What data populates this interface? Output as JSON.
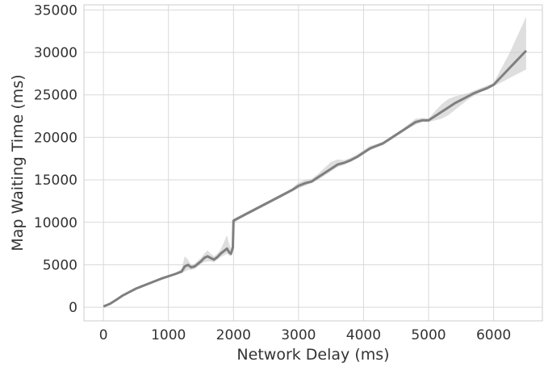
{
  "chart_data": {
    "type": "line",
    "title": "",
    "xlabel": "Network Delay (ms)",
    "ylabel": "Map Waiting Time (ms)",
    "xlim": [
      -300,
      6750
    ],
    "ylim": [
      -1600,
      35600
    ],
    "xticks": [
      0,
      1000,
      2000,
      3000,
      4000,
      5000,
      6000
    ],
    "yticks": [
      0,
      5000,
      10000,
      15000,
      20000,
      25000,
      30000,
      35000
    ],
    "xtick_labels": [
      "0",
      "1000",
      "2000",
      "3000",
      "4000",
      "5000",
      "6000"
    ],
    "ytick_labels": [
      "0",
      "5000",
      "10000",
      "15000",
      "20000",
      "25000",
      "30000",
      "35000"
    ],
    "grid": true,
    "legend": "none",
    "colors": {
      "line": "#7f7f7f",
      "band": "#c8c8c8",
      "grid": "#d9d9d9"
    },
    "series": [
      {
        "x": [
          0,
          100,
          200,
          300,
          400,
          500,
          600,
          700,
          800,
          900,
          1000,
          1100,
          1200,
          1250,
          1300,
          1350,
          1400,
          1450,
          1500,
          1550,
          1600,
          1650,
          1700,
          1750,
          1800,
          1850,
          1900,
          1930,
          1960,
          1990,
          2000,
          2100,
          2200,
          2300,
          2400,
          2500,
          2600,
          2700,
          2800,
          2850,
          2900,
          3000,
          3100,
          3200,
          3300,
          3400,
          3500,
          3600,
          3700,
          3800,
          3900,
          4000,
          4100,
          4200,
          4300,
          4400,
          4500,
          4600,
          4700,
          4800,
          4900,
          5000,
          5100,
          5200,
          5300,
          5400,
          5500,
          5600,
          5700,
          5800,
          5900,
          6000,
          6250,
          6500
        ],
        "y": [
          100,
          400,
          900,
          1400,
          1800,
          2200,
          2500,
          2800,
          3100,
          3400,
          3650,
          3900,
          4200,
          4800,
          5000,
          4700,
          4800,
          5100,
          5400,
          5800,
          6000,
          5800,
          5600,
          5900,
          6300,
          6600,
          6900,
          6500,
          6300,
          7000,
          10200,
          10600,
          11000,
          11400,
          11800,
          12200,
          12600,
          13000,
          13400,
          13600,
          13800,
          14300,
          14600,
          14800,
          15300,
          15800,
          16300,
          16800,
          17000,
          17300,
          17700,
          18200,
          18700,
          19000,
          19300,
          19800,
          20300,
          20800,
          21300,
          21800,
          22000,
          22000,
          22500,
          23000,
          23500,
          24000,
          24400,
          24800,
          25200,
          25500,
          25800,
          26200,
          28200,
          30200
        ],
        "lower": [
          0,
          300,
          800,
          1300,
          1700,
          2100,
          2400,
          2700,
          3000,
          3300,
          3550,
          3800,
          4000,
          4200,
          4400,
          4400,
          4500,
          4800,
          5100,
          5300,
          5400,
          5400,
          5300,
          5600,
          5900,
          6100,
          6300,
          6100,
          6000,
          6600,
          9900,
          10400,
          10800,
          11200,
          11600,
          12000,
          12400,
          12800,
          13200,
          13400,
          13600,
          14000,
          14300,
          14600,
          15000,
          15500,
          16000,
          16500,
          16800,
          17100,
          17500,
          18000,
          18500,
          18800,
          19100,
          19600,
          20100,
          20600,
          21100,
          21500,
          21800,
          21800,
          22000,
          22200,
          22600,
          23200,
          23800,
          24400,
          24900,
          25300,
          25600,
          26000,
          27000,
          28000
        ],
        "upper": [
          200,
          500,
          1000,
          1500,
          1900,
          2300,
          2600,
          2900,
          3200,
          3500,
          3750,
          4000,
          4500,
          6000,
          5600,
          5000,
          5100,
          5500,
          5800,
          6300,
          6700,
          6300,
          6000,
          6300,
          6800,
          7600,
          8500,
          7500,
          7000,
          7400,
          10400,
          10800,
          11200,
          11600,
          12000,
          12400,
          12800,
          13200,
          13600,
          13800,
          14000,
          14700,
          15000,
          15100,
          15700,
          16400,
          17100,
          17400,
          17300,
          17600,
          18000,
          18500,
          19000,
          19200,
          19500,
          20000,
          20500,
          21000,
          21600,
          22200,
          22300,
          22200,
          23100,
          23900,
          24500,
          24800,
          25000,
          25200,
          25500,
          25800,
          26100,
          26400,
          30000,
          34200
        ]
      }
    ]
  }
}
